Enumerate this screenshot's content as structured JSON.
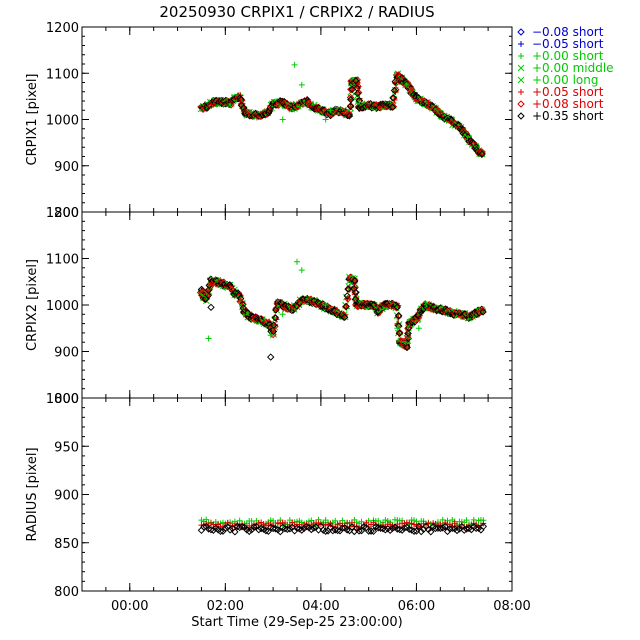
{
  "title": "20250930 CRPIX1 / CRPIX2 / RADIUS",
  "xlabel": "Start Time (29-Sep-25 23:00:00)",
  "legend": [
    {
      "symbol": "diamond",
      "color": "#0000cc",
      "offset": "−0.08",
      "label": "short"
    },
    {
      "symbol": "plus",
      "color": "#0000cc",
      "offset": "−0.05",
      "label": "short"
    },
    {
      "symbol": "plus",
      "color": "#00cc00",
      "offset": "+0.00",
      "label": "short"
    },
    {
      "symbol": "cross",
      "color": "#00cc00",
      "offset": "+0.00",
      "label": "middle"
    },
    {
      "symbol": "cross",
      "color": "#00cc00",
      "offset": "+0.00",
      "label": "long"
    },
    {
      "symbol": "plus",
      "color": "#dd0000",
      "offset": "+0.05",
      "label": "short"
    },
    {
      "symbol": "diamond",
      "color": "#dd0000",
      "offset": "+0.08",
      "label": "short"
    },
    {
      "symbol": "diamond",
      "color": "#000000",
      "offset": "+0.35",
      "label": "short"
    }
  ],
  "chart_data": [
    {
      "type": "scatter",
      "ylabel": "CRPIX1 [pixel]",
      "xlim": [
        -1.0,
        8.0
      ],
      "ylim": [
        800,
        1200
      ],
      "x_ticks": [
        0,
        2,
        4,
        6,
        8
      ],
      "x_tick_labels": [
        "00:00",
        "02:00",
        "04:00",
        "06:00",
        "08:00"
      ],
      "y_ticks": [
        800,
        900,
        1000,
        1100,
        1200
      ],
      "trend_x": [
        1.5,
        1.6,
        1.7,
        1.8,
        1.9,
        2.0,
        2.1,
        2.2,
        2.3,
        2.4,
        2.5,
        2.6,
        2.7,
        2.8,
        2.9,
        3.0,
        3.1,
        3.2,
        3.3,
        3.4,
        3.5,
        3.6,
        3.7,
        3.8,
        3.9,
        4.0,
        4.1,
        4.2,
        4.3,
        4.4,
        4.5,
        4.6,
        4.65,
        4.7,
        4.75,
        4.8,
        4.9,
        5.0,
        5.1,
        5.2,
        5.3,
        5.4,
        5.5,
        5.6,
        5.65,
        5.7,
        5.8,
        5.9,
        6.0,
        6.1,
        6.2,
        6.3,
        6.4,
        6.5,
        6.6,
        6.7,
        6.8,
        6.9,
        7.0,
        7.1,
        7.2,
        7.3,
        7.4
      ],
      "trend_y": [
        1025,
        1028,
        1035,
        1038,
        1037,
        1038,
        1035,
        1045,
        1050,
        1015,
        1012,
        1010,
        1008,
        1012,
        1018,
        1035,
        1035,
        1038,
        1030,
        1025,
        1030,
        1035,
        1040,
        1030,
        1025,
        1020,
        1015,
        1012,
        1020,
        1018,
        1015,
        1010,
        1080,
        1082,
        1082,
        1028,
        1028,
        1032,
        1028,
        1028,
        1030,
        1030,
        1030,
        1095,
        1090,
        1085,
        1075,
        1060,
        1045,
        1040,
        1035,
        1030,
        1020,
        1012,
        1005,
        1000,
        990,
        985,
        970,
        955,
        945,
        930,
        925
      ],
      "outliers_green": [
        [
          3.45,
          1118
        ],
        [
          3.6,
          1075
        ],
        [
          4.1,
          1000
        ],
        [
          5.8,
          1075
        ],
        [
          4.2,
          1020
        ],
        [
          3.2,
          1000
        ]
      ]
    },
    {
      "type": "scatter",
      "ylabel": "CRPIX2 [pixel]",
      "xlim": [
        -1.0,
        8.0
      ],
      "ylim": [
        800,
        1200
      ],
      "x_ticks": [
        0,
        2,
        4,
        6,
        8
      ],
      "x_tick_labels": [
        "00:00",
        "02:00",
        "04:00",
        "06:00",
        "08:00"
      ],
      "y_ticks": [
        800,
        900,
        1000,
        1100,
        1200
      ],
      "trend_x": [
        1.5,
        1.55,
        1.6,
        1.7,
        1.8,
        1.9,
        2.0,
        2.1,
        2.2,
        2.3,
        2.4,
        2.5,
        2.6,
        2.7,
        2.8,
        2.9,
        3.0,
        3.1,
        3.2,
        3.3,
        3.4,
        3.5,
        3.6,
        3.7,
        3.8,
        3.9,
        4.0,
        4.1,
        4.2,
        4.3,
        4.4,
        4.5,
        4.6,
        4.65,
        4.7,
        4.75,
        4.8,
        4.9,
        5.0,
        5.1,
        5.2,
        5.3,
        5.4,
        5.5,
        5.6,
        5.65,
        5.7,
        5.75,
        5.8,
        5.85,
        5.9,
        6.0,
        6.1,
        6.2,
        6.3,
        6.4,
        6.5,
        6.6,
        6.7,
        6.8,
        6.9,
        7.0,
        7.1,
        7.2,
        7.3,
        7.4
      ],
      "trend_y": [
        1030,
        1018,
        1012,
        1052,
        1050,
        1048,
        1043,
        1040,
        1025,
        1020,
        985,
        975,
        972,
        968,
        965,
        960,
        940,
        1005,
        1000,
        995,
        990,
        1000,
        1010,
        1010,
        1008,
        1005,
        1000,
        995,
        990,
        985,
        980,
        975,
        1058,
        1055,
        1052,
        1000,
        1000,
        1000,
        1000,
        1000,
        985,
        998,
        1000,
        1000,
        995,
        920,
        918,
        915,
        912,
        960,
        965,
        970,
        990,
        1000,
        995,
        992,
        990,
        988,
        985,
        982,
        980,
        978,
        975,
        980,
        985,
        990
      ],
      "outliers_green": [
        [
          1.65,
          928
        ],
        [
          3.5,
          1093
        ],
        [
          3.6,
          1075
        ],
        [
          2.95,
          935
        ],
        [
          5.6,
          950
        ],
        [
          6.05,
          950
        ],
        [
          3.2,
          980
        ],
        [
          4.1,
          1000
        ]
      ],
      "outliers_black": [
        [
          2.95,
          888
        ],
        [
          1.7,
          995
        ]
      ]
    },
    {
      "type": "scatter",
      "ylabel": "RADIUS [pixel]",
      "xlim": [
        -1.0,
        8.0
      ],
      "ylim": [
        800,
        1000
      ],
      "x_ticks": [
        0,
        2,
        4,
        6,
        8
      ],
      "x_tick_labels": [
        "00:00",
        "02:00",
        "04:00",
        "06:00",
        "08:00"
      ],
      "y_ticks": [
        800,
        850,
        900,
        950,
        1000
      ],
      "x_start": 1.5,
      "x_end": 7.4,
      "levels": [
        {
          "color": "#00cc00",
          "symbol": "plus",
          "value": 871
        },
        {
          "color": "#dd0000",
          "symbol": "plus",
          "value": 868
        },
        {
          "color": "#000000",
          "symbol": "diamond",
          "value": 864
        }
      ]
    }
  ]
}
